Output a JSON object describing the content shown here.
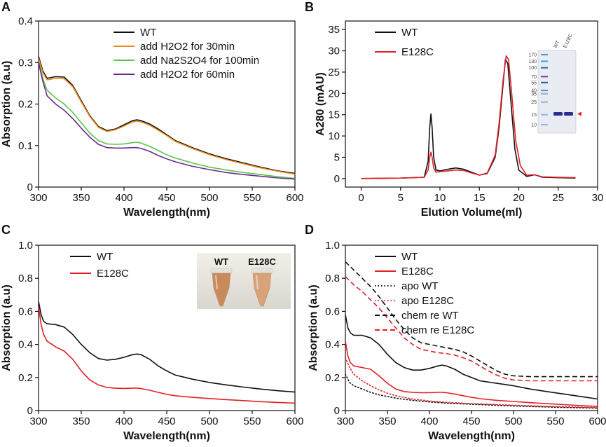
{
  "chart_data": [
    {
      "panel": "A",
      "type": "line",
      "title": "",
      "xlabel": "Wavelength(nm)",
      "ylabel": "Absorption (a.u)",
      "xlim": [
        300,
        600
      ],
      "ylim": [
        0,
        0.4
      ],
      "xticks": [
        300,
        350,
        400,
        450,
        500,
        550,
        600
      ],
      "yticks": [
        0,
        0.1,
        0.2,
        0.3,
        0.4
      ],
      "xtick_labels": [
        "300",
        "350",
        "400",
        "450",
        "500",
        "550",
        "600"
      ],
      "ytick_labels": [
        "0",
        "0.1",
        "0.2",
        "0.3",
        "0.4"
      ],
      "legend_position": "top-right",
      "series": [
        {
          "name": "WT",
          "color": "#111111",
          "dash": "solid",
          "x": [
            300,
            305,
            310,
            320,
            330,
            340,
            350,
            360,
            370,
            380,
            390,
            400,
            410,
            415,
            420,
            430,
            440,
            450,
            460,
            480,
            500,
            520,
            540,
            560,
            580,
            600
          ],
          "y": [
            0.315,
            0.28,
            0.262,
            0.266,
            0.265,
            0.245,
            0.208,
            0.172,
            0.146,
            0.136,
            0.14,
            0.15,
            0.16,
            0.162,
            0.16,
            0.152,
            0.14,
            0.126,
            0.112,
            0.095,
            0.08,
            0.068,
            0.058,
            0.048,
            0.039,
            0.033
          ]
        },
        {
          "name": "add H2O2 for 30min",
          "color": "#f08a1c",
          "dash": "solid",
          "x": [
            300,
            305,
            310,
            320,
            330,
            340,
            350,
            360,
            370,
            380,
            390,
            400,
            410,
            415,
            420,
            430,
            440,
            450,
            460,
            480,
            500,
            520,
            540,
            560,
            580,
            600
          ],
          "y": [
            0.31,
            0.276,
            0.258,
            0.262,
            0.261,
            0.242,
            0.205,
            0.17,
            0.144,
            0.134,
            0.138,
            0.147,
            0.157,
            0.159,
            0.157,
            0.149,
            0.137,
            0.124,
            0.11,
            0.093,
            0.078,
            0.066,
            0.056,
            0.046,
            0.038,
            0.031
          ]
        },
        {
          "name": "add Na2S2O4 for 100min",
          "color": "#5ac54a",
          "dash": "solid",
          "x": [
            300,
            305,
            310,
            320,
            330,
            340,
            350,
            360,
            370,
            380,
            390,
            400,
            410,
            415,
            420,
            430,
            440,
            450,
            460,
            480,
            500,
            520,
            540,
            560,
            580,
            600
          ],
          "y": [
            0.305,
            0.262,
            0.233,
            0.215,
            0.2,
            0.18,
            0.155,
            0.13,
            0.112,
            0.104,
            0.103,
            0.104,
            0.107,
            0.108,
            0.106,
            0.098,
            0.088,
            0.078,
            0.07,
            0.058,
            0.048,
            0.041,
            0.035,
            0.03,
            0.025,
            0.021
          ]
        },
        {
          "name": "add H2O2 for 60min",
          "color": "#6a2c8f",
          "dash": "solid",
          "x": [
            300,
            305,
            310,
            320,
            330,
            340,
            350,
            360,
            370,
            380,
            390,
            400,
            410,
            415,
            420,
            430,
            440,
            450,
            460,
            480,
            500,
            520,
            540,
            560,
            580,
            600
          ],
          "y": [
            0.3,
            0.255,
            0.22,
            0.2,
            0.185,
            0.165,
            0.142,
            0.12,
            0.103,
            0.095,
            0.094,
            0.094,
            0.095,
            0.095,
            0.093,
            0.086,
            0.076,
            0.068,
            0.061,
            0.05,
            0.042,
            0.035,
            0.03,
            0.026,
            0.022,
            0.019
          ]
        }
      ]
    },
    {
      "panel": "B",
      "type": "line",
      "title": "",
      "xlabel": "Elution Volume(ml)",
      "ylabel": "A280 (mAU)",
      "xlim": [
        -2,
        30
      ],
      "ylim": [
        -2,
        37
      ],
      "xticks": [
        0,
        5,
        10,
        15,
        20,
        25,
        30
      ],
      "yticks": [
        0,
        5,
        10,
        15,
        20,
        25,
        30,
        35
      ],
      "xtick_labels": [
        "0",
        "5",
        "10",
        "15",
        "20",
        "25",
        "30"
      ],
      "ytick_labels": [
        "0",
        "5",
        "10",
        "15",
        "20",
        "25",
        "30",
        "35"
      ],
      "legend_position": "top-left",
      "series": [
        {
          "name": "WT",
          "color": "#111111",
          "dash": "solid",
          "x": [
            0,
            5,
            8,
            8.5,
            8.7,
            8.85,
            9.0,
            9.2,
            9.5,
            10,
            11,
            12,
            13,
            14,
            15,
            16,
            17,
            17.5,
            18,
            18.3,
            18.6,
            19,
            19.5,
            20,
            21,
            22,
            23,
            25,
            27.2
          ],
          "y": [
            0,
            0.1,
            0.3,
            4,
            12,
            15.2,
            12,
            5,
            2,
            1.8,
            2.2,
            2.5,
            2.2,
            1.5,
            0.8,
            1.2,
            5,
            12,
            22,
            28,
            27,
            18,
            7,
            2,
            0.5,
            0.9,
            0.3,
            0.2,
            0.1
          ]
        },
        {
          "name": "E128C",
          "color": "#e21f26",
          "dash": "solid",
          "x": [
            0,
            5,
            8,
            8.5,
            8.7,
            8.85,
            9.0,
            9.2,
            9.5,
            10,
            11,
            12,
            13,
            14,
            15,
            16,
            17,
            17.5,
            18,
            18.4,
            18.7,
            19.1,
            19.6,
            20.2,
            21,
            22,
            23,
            25,
            27.2
          ],
          "y": [
            0,
            0.1,
            0.3,
            2,
            5,
            6.2,
            5,
            2.5,
            1.5,
            1.6,
            1.8,
            2.0,
            1.9,
            1.3,
            0.8,
            1.3,
            5.5,
            13,
            23,
            28.8,
            28,
            20,
            9,
            3,
            0.8,
            0.9,
            0.4,
            0.3,
            0.2
          ]
        }
      ],
      "inset": {
        "description": "gel",
        "lane_labels": [
          "WT",
          "E128C"
        ],
        "marker_labels": [
          "170",
          "130",
          "100",
          "70",
          "55",
          "40",
          "35",
          "25",
          "15",
          "10"
        ],
        "marker_kda": [
          170,
          130,
          100,
          70,
          55,
          40,
          35,
          25,
          15,
          10
        ]
      }
    },
    {
      "panel": "C",
      "type": "line",
      "title": "",
      "xlabel": "Wavelength(nm)",
      "ylabel": "Absorption (a.u)",
      "xlim": [
        300,
        600
      ],
      "ylim": [
        0,
        1.0
      ],
      "xticks": [
        300,
        350,
        400,
        450,
        500,
        550,
        600
      ],
      "yticks": [
        0,
        0.2,
        0.4,
        0.6,
        0.8,
        1.0
      ],
      "xtick_labels": [
        "300",
        "350",
        "400",
        "450",
        "500",
        "550",
        "600"
      ],
      "ytick_labels": [
        "0",
        "0.2",
        "0.4",
        "0.6",
        "0.8",
        "1.0"
      ],
      "legend_position": "top-left",
      "series": [
        {
          "name": "WT",
          "color": "#111111",
          "dash": "solid",
          "x": [
            300,
            303,
            306,
            310,
            320,
            330,
            340,
            350,
            360,
            370,
            380,
            390,
            400,
            410,
            415,
            420,
            430,
            440,
            450,
            460,
            480,
            500,
            520,
            540,
            560,
            580,
            600
          ],
          "y": [
            0.66,
            0.58,
            0.54,
            0.525,
            0.52,
            0.505,
            0.46,
            0.4,
            0.35,
            0.315,
            0.305,
            0.31,
            0.322,
            0.338,
            0.342,
            0.338,
            0.31,
            0.27,
            0.24,
            0.215,
            0.19,
            0.17,
            0.155,
            0.142,
            0.13,
            0.12,
            0.112
          ]
        },
        {
          "name": "E128C",
          "color": "#e21f26",
          "dash": "solid",
          "x": [
            300,
            303,
            306,
            310,
            320,
            330,
            340,
            350,
            360,
            370,
            380,
            390,
            400,
            410,
            415,
            420,
            430,
            440,
            450,
            460,
            480,
            500,
            520,
            540,
            560,
            580,
            600
          ],
          "y": [
            0.63,
            0.52,
            0.46,
            0.42,
            0.385,
            0.36,
            0.31,
            0.24,
            0.185,
            0.155,
            0.14,
            0.135,
            0.134,
            0.136,
            0.136,
            0.133,
            0.123,
            0.11,
            0.098,
            0.09,
            0.08,
            0.073,
            0.066,
            0.06,
            0.054,
            0.049,
            0.045
          ]
        }
      ],
      "inset": {
        "description": "photo",
        "labels": [
          "WT",
          "E128C"
        ]
      }
    },
    {
      "panel": "D",
      "type": "line",
      "title": "",
      "xlabel": "Wavelength(nm)",
      "ylabel": "Absorption (a.u)",
      "xlim": [
        300,
        600
      ],
      "ylim": [
        0,
        1.0
      ],
      "xticks": [
        300,
        350,
        400,
        450,
        500,
        550,
        600
      ],
      "yticks": [
        0,
        0.2,
        0.4,
        0.6,
        0.8,
        1.0
      ],
      "xtick_labels": [
        "300",
        "350",
        "400",
        "450",
        "500",
        "550",
        "600"
      ],
      "ytick_labels": [
        "0",
        "0.2",
        "0.4",
        "0.6",
        "0.8",
        "1.0"
      ],
      "legend_position": "top-right",
      "series": [
        {
          "name": "WT",
          "color": "#111111",
          "dash": "solid",
          "x": [
            300,
            303,
            306,
            310,
            320,
            330,
            340,
            350,
            360,
            370,
            380,
            390,
            400,
            410,
            415,
            420,
            430,
            440,
            450,
            460,
            480,
            500,
            520,
            540,
            560,
            580,
            600
          ],
          "y": [
            0.58,
            0.5,
            0.47,
            0.455,
            0.455,
            0.44,
            0.4,
            0.34,
            0.29,
            0.26,
            0.245,
            0.245,
            0.255,
            0.27,
            0.275,
            0.27,
            0.25,
            0.22,
            0.2,
            0.18,
            0.165,
            0.15,
            0.13,
            0.115,
            0.1,
            0.085,
            0.07
          ]
        },
        {
          "name": "E128C",
          "color": "#e21f26",
          "dash": "solid",
          "x": [
            300,
            303,
            306,
            310,
            320,
            330,
            340,
            350,
            360,
            370,
            380,
            390,
            400,
            410,
            415,
            420,
            430,
            440,
            450,
            460,
            480,
            500,
            520,
            540,
            560,
            580,
            600
          ],
          "y": [
            0.42,
            0.33,
            0.29,
            0.27,
            0.26,
            0.25,
            0.21,
            0.165,
            0.13,
            0.115,
            0.11,
            0.108,
            0.108,
            0.11,
            0.11,
            0.108,
            0.1,
            0.09,
            0.08,
            0.072,
            0.062,
            0.055,
            0.048,
            0.042,
            0.036,
            0.03,
            0.025
          ]
        },
        {
          "name": "apo WT",
          "color": "#111111",
          "dash": "dotted",
          "x": [
            300,
            305,
            310,
            320,
            330,
            340,
            350,
            360,
            380,
            400,
            420,
            450,
            500,
            550,
            600
          ],
          "y": [
            0.22,
            0.17,
            0.15,
            0.13,
            0.11,
            0.095,
            0.085,
            0.075,
            0.062,
            0.052,
            0.045,
            0.038,
            0.028,
            0.02,
            0.015
          ]
        },
        {
          "name": "apo E128C",
          "color": "#e21f26",
          "dash": "dotted",
          "x": [
            300,
            305,
            310,
            320,
            330,
            340,
            350,
            360,
            380,
            400,
            420,
            450,
            500,
            550,
            600
          ],
          "y": [
            0.32,
            0.26,
            0.22,
            0.18,
            0.15,
            0.125,
            0.105,
            0.09,
            0.07,
            0.058,
            0.05,
            0.042,
            0.032,
            0.024,
            0.018
          ]
        },
        {
          "name": "chem re WT",
          "color": "#111111",
          "dash": "dashed",
          "x": [
            300,
            310,
            320,
            330,
            340,
            350,
            360,
            370,
            380,
            390,
            400,
            410,
            420,
            430,
            440,
            450,
            460,
            470,
            480,
            490,
            500,
            520,
            540,
            560,
            580,
            600
          ],
          "y": [
            0.9,
            0.85,
            0.8,
            0.75,
            0.69,
            0.62,
            0.55,
            0.49,
            0.44,
            0.41,
            0.4,
            0.39,
            0.38,
            0.37,
            0.355,
            0.33,
            0.3,
            0.27,
            0.24,
            0.22,
            0.21,
            0.205,
            0.205,
            0.205,
            0.205,
            0.205
          ]
        },
        {
          "name": "chem re E128C",
          "color": "#e21f26",
          "dash": "dashed",
          "x": [
            300,
            310,
            320,
            330,
            340,
            350,
            360,
            370,
            380,
            390,
            400,
            410,
            420,
            430,
            440,
            450,
            460,
            470,
            480,
            490,
            500,
            520,
            540,
            560,
            580,
            600
          ],
          "y": [
            0.81,
            0.76,
            0.72,
            0.67,
            0.62,
            0.56,
            0.5,
            0.44,
            0.4,
            0.37,
            0.36,
            0.35,
            0.345,
            0.335,
            0.32,
            0.3,
            0.27,
            0.24,
            0.215,
            0.195,
            0.185,
            0.18,
            0.18,
            0.18,
            0.18,
            0.18
          ]
        }
      ]
    }
  ],
  "panels": {
    "A": {
      "letter": "A"
    },
    "B": {
      "letter": "B"
    },
    "C": {
      "letter": "C"
    },
    "D": {
      "letter": "D"
    }
  }
}
